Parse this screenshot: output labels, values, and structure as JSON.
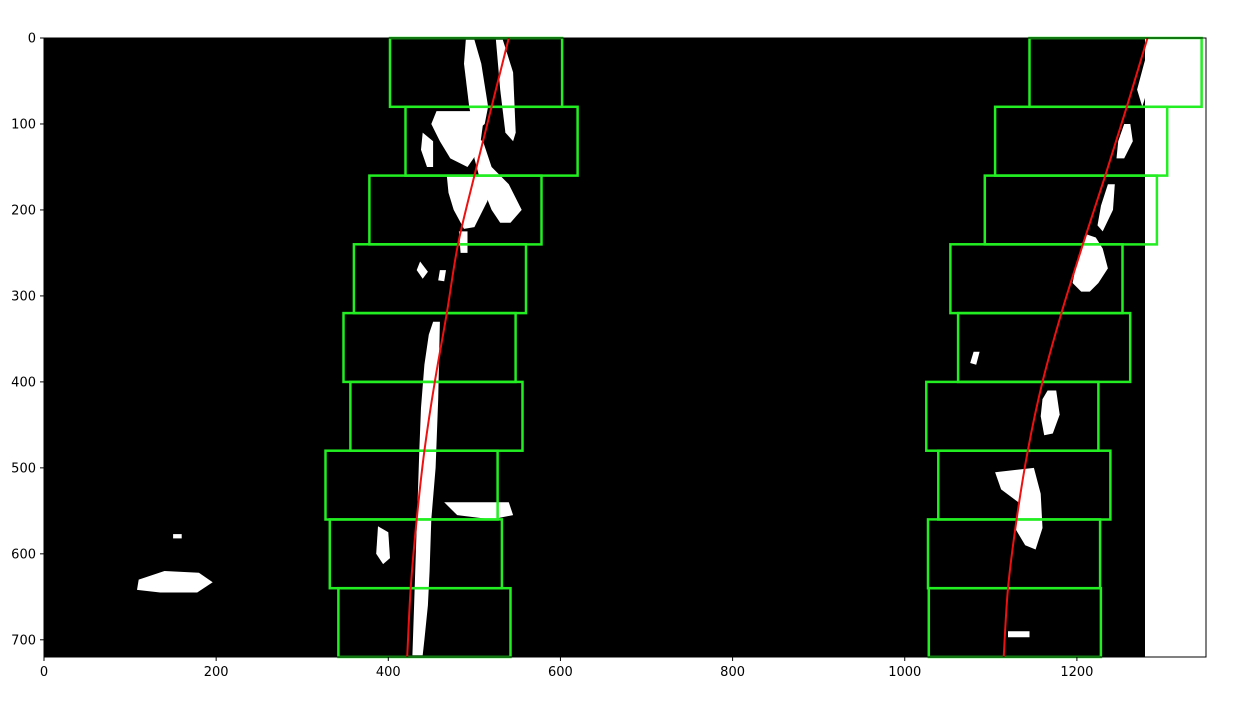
{
  "chart_data": {
    "type": "image-plot",
    "title": "",
    "xlabel": "",
    "ylabel": "",
    "xlim": [
      0,
      1350
    ],
    "ylim": [
      720,
      0
    ],
    "image_extent": {
      "width": 1280,
      "height": 720
    },
    "xticks": [
      0,
      200,
      400,
      600,
      800,
      1000,
      1200
    ],
    "yticks": [
      0,
      100,
      200,
      300,
      400,
      500,
      600,
      700
    ],
    "colors": {
      "background": "#000000",
      "lane_pixels": "#ffffff",
      "windows": "#22ee22",
      "fit": "#ee1111",
      "right_margin_area": "#ffffff"
    },
    "search_windows": {
      "left": [
        {
          "x0": 402,
          "y0": 0,
          "x1": 602,
          "y1": 80
        },
        {
          "x0": 420,
          "y0": 80,
          "x1": 620,
          "y1": 160
        },
        {
          "x0": 378,
          "y0": 160,
          "x1": 578,
          "y1": 240
        },
        {
          "x0": 360,
          "y0": 240,
          "x1": 560,
          "y1": 320
        },
        {
          "x0": 348,
          "y0": 320,
          "x1": 548,
          "y1": 400
        },
        {
          "x0": 356,
          "y0": 400,
          "x1": 556,
          "y1": 480
        },
        {
          "x0": 327,
          "y0": 480,
          "x1": 527,
          "y1": 560
        },
        {
          "x0": 332,
          "y0": 560,
          "x1": 532,
          "y1": 640
        },
        {
          "x0": 342,
          "y0": 640,
          "x1": 542,
          "y1": 720
        }
      ],
      "right": [
        {
          "x0": 1145,
          "y0": 0,
          "x1": 1345,
          "y1": 80
        },
        {
          "x0": 1105,
          "y0": 80,
          "x1": 1305,
          "y1": 160
        },
        {
          "x0": 1093,
          "y0": 160,
          "x1": 1293,
          "y1": 240
        },
        {
          "x0": 1053,
          "y0": 240,
          "x1": 1253,
          "y1": 320
        },
        {
          "x0": 1062,
          "y0": 320,
          "x1": 1262,
          "y1": 400
        },
        {
          "x0": 1025,
          "y0": 400,
          "x1": 1225,
          "y1": 480
        },
        {
          "x0": 1039,
          "y0": 480,
          "x1": 1239,
          "y1": 560
        },
        {
          "x0": 1027,
          "y0": 560,
          "x1": 1227,
          "y1": 640
        },
        {
          "x0": 1028,
          "y0": 640,
          "x1": 1228,
          "y1": 720
        }
      ]
    },
    "fits": {
      "left": {
        "y": [
          0,
          80,
          160,
          240,
          320,
          400,
          480,
          560,
          640,
          720
        ],
        "x": [
          540,
          520,
          500,
          481,
          468,
          454,
          442,
          433,
          426,
          422
        ]
      },
      "right": {
        "y": [
          0,
          80,
          160,
          240,
          320,
          400,
          480,
          560,
          640,
          720
        ],
        "x": [
          1282,
          1258,
          1233,
          1207,
          1182,
          1160,
          1143,
          1130,
          1120,
          1115
        ]
      }
    },
    "lane_blobs": [
      [
        [
          490,
          2
        ],
        [
          500,
          2
        ],
        [
          508,
          30
        ],
        [
          516,
          80
        ],
        [
          512,
          100
        ],
        [
          500,
          110
        ],
        [
          494,
          80
        ],
        [
          488,
          30
        ]
      ],
      [
        [
          525,
          2
        ],
        [
          533,
          2
        ],
        [
          545,
          40
        ],
        [
          548,
          110
        ],
        [
          545,
          120
        ],
        [
          536,
          110
        ],
        [
          530,
          60
        ]
      ],
      [
        [
          456,
          85
        ],
        [
          500,
          85
        ],
        [
          510,
          100
        ],
        [
          506,
          130
        ],
        [
          492,
          150
        ],
        [
          472,
          140
        ],
        [
          460,
          120
        ],
        [
          450,
          100
        ]
      ],
      [
        [
          440,
          110
        ],
        [
          452,
          120
        ],
        [
          452,
          150
        ],
        [
          445,
          150
        ],
        [
          438,
          130
        ]
      ],
      [
        [
          500,
          115
        ],
        [
          510,
          120
        ],
        [
          520,
          150
        ],
        [
          540,
          170
        ],
        [
          555,
          200
        ],
        [
          542,
          215
        ],
        [
          530,
          215
        ],
        [
          520,
          200
        ],
        [
          508,
          170
        ],
        [
          500,
          140
        ]
      ],
      [
        [
          468,
          160
        ],
        [
          520,
          160
        ],
        [
          515,
          190
        ],
        [
          500,
          220
        ],
        [
          488,
          222
        ],
        [
          476,
          200
        ],
        [
          470,
          180
        ]
      ],
      [
        [
          482,
          225
        ],
        [
          492,
          225
        ],
        [
          492,
          250
        ],
        [
          484,
          250
        ]
      ],
      [
        [
          437,
          260
        ],
        [
          446,
          272
        ],
        [
          440,
          280
        ],
        [
          433,
          270
        ]
      ],
      [
        [
          460,
          270
        ],
        [
          467,
          270
        ],
        [
          465,
          283
        ],
        [
          458,
          282
        ]
      ],
      [
        [
          452,
          330
        ],
        [
          460,
          330
        ],
        [
          458,
          420
        ],
        [
          455,
          500
        ],
        [
          450,
          560
        ],
        [
          448,
          620
        ],
        [
          446,
          660
        ],
        [
          442,
          700
        ],
        [
          440,
          718
        ],
        [
          428,
          718
        ],
        [
          430,
          660
        ],
        [
          432,
          600
        ],
        [
          434,
          540
        ],
        [
          436,
          480
        ],
        [
          438,
          430
        ],
        [
          442,
          380
        ],
        [
          447,
          345
        ]
      ],
      [
        [
          465,
          540
        ],
        [
          540,
          540
        ],
        [
          545,
          555
        ],
        [
          520,
          560
        ],
        [
          480,
          555
        ]
      ],
      [
        [
          388,
          568
        ],
        [
          400,
          575
        ],
        [
          402,
          605
        ],
        [
          394,
          612
        ],
        [
          386,
          600
        ]
      ],
      [
        [
          110,
          630
        ],
        [
          140,
          620
        ],
        [
          180,
          622
        ],
        [
          196,
          633
        ],
        [
          178,
          645
        ],
        [
          135,
          645
        ],
        [
          108,
          642
        ]
      ],
      [
        [
          150,
          577
        ],
        [
          160,
          577
        ],
        [
          160,
          582
        ],
        [
          150,
          582
        ]
      ],
      [
        [
          1286,
          2
        ],
        [
          1292,
          2
        ],
        [
          1292,
          30
        ],
        [
          1282,
          60
        ],
        [
          1276,
          80
        ],
        [
          1270,
          60
        ],
        [
          1278,
          30
        ]
      ],
      [
        [
          1255,
          100
        ],
        [
          1262,
          100
        ],
        [
          1265,
          120
        ],
        [
          1255,
          140
        ],
        [
          1246,
          140
        ],
        [
          1248,
          120
        ]
      ],
      [
        [
          1236,
          170
        ],
        [
          1244,
          170
        ],
        [
          1242,
          200
        ],
        [
          1230,
          225
        ],
        [
          1224,
          218
        ],
        [
          1228,
          195
        ]
      ],
      [
        [
          1210,
          228
        ],
        [
          1222,
          232
        ],
        [
          1230,
          245
        ],
        [
          1236,
          268
        ],
        [
          1225,
          285
        ],
        [
          1215,
          295
        ],
        [
          1205,
          295
        ],
        [
          1195,
          285
        ],
        [
          1200,
          260
        ]
      ],
      [
        [
          1166,
          410
        ],
        [
          1176,
          410
        ],
        [
          1180,
          438
        ],
        [
          1172,
          460
        ],
        [
          1162,
          462
        ],
        [
          1158,
          440
        ],
        [
          1160,
          420
        ]
      ],
      [
        [
          1105,
          505
        ],
        [
          1150,
          500
        ],
        [
          1158,
          530
        ],
        [
          1160,
          570
        ],
        [
          1152,
          595
        ],
        [
          1140,
          590
        ],
        [
          1128,
          570
        ],
        [
          1132,
          540
        ],
        [
          1112,
          525
        ]
      ],
      [
        [
          1120,
          690
        ],
        [
          1145,
          690
        ],
        [
          1145,
          697
        ],
        [
          1120,
          697
        ]
      ],
      [
        [
          1080,
          365
        ],
        [
          1087,
          365
        ],
        [
          1083,
          380
        ],
        [
          1076,
          378
        ]
      ]
    ]
  }
}
